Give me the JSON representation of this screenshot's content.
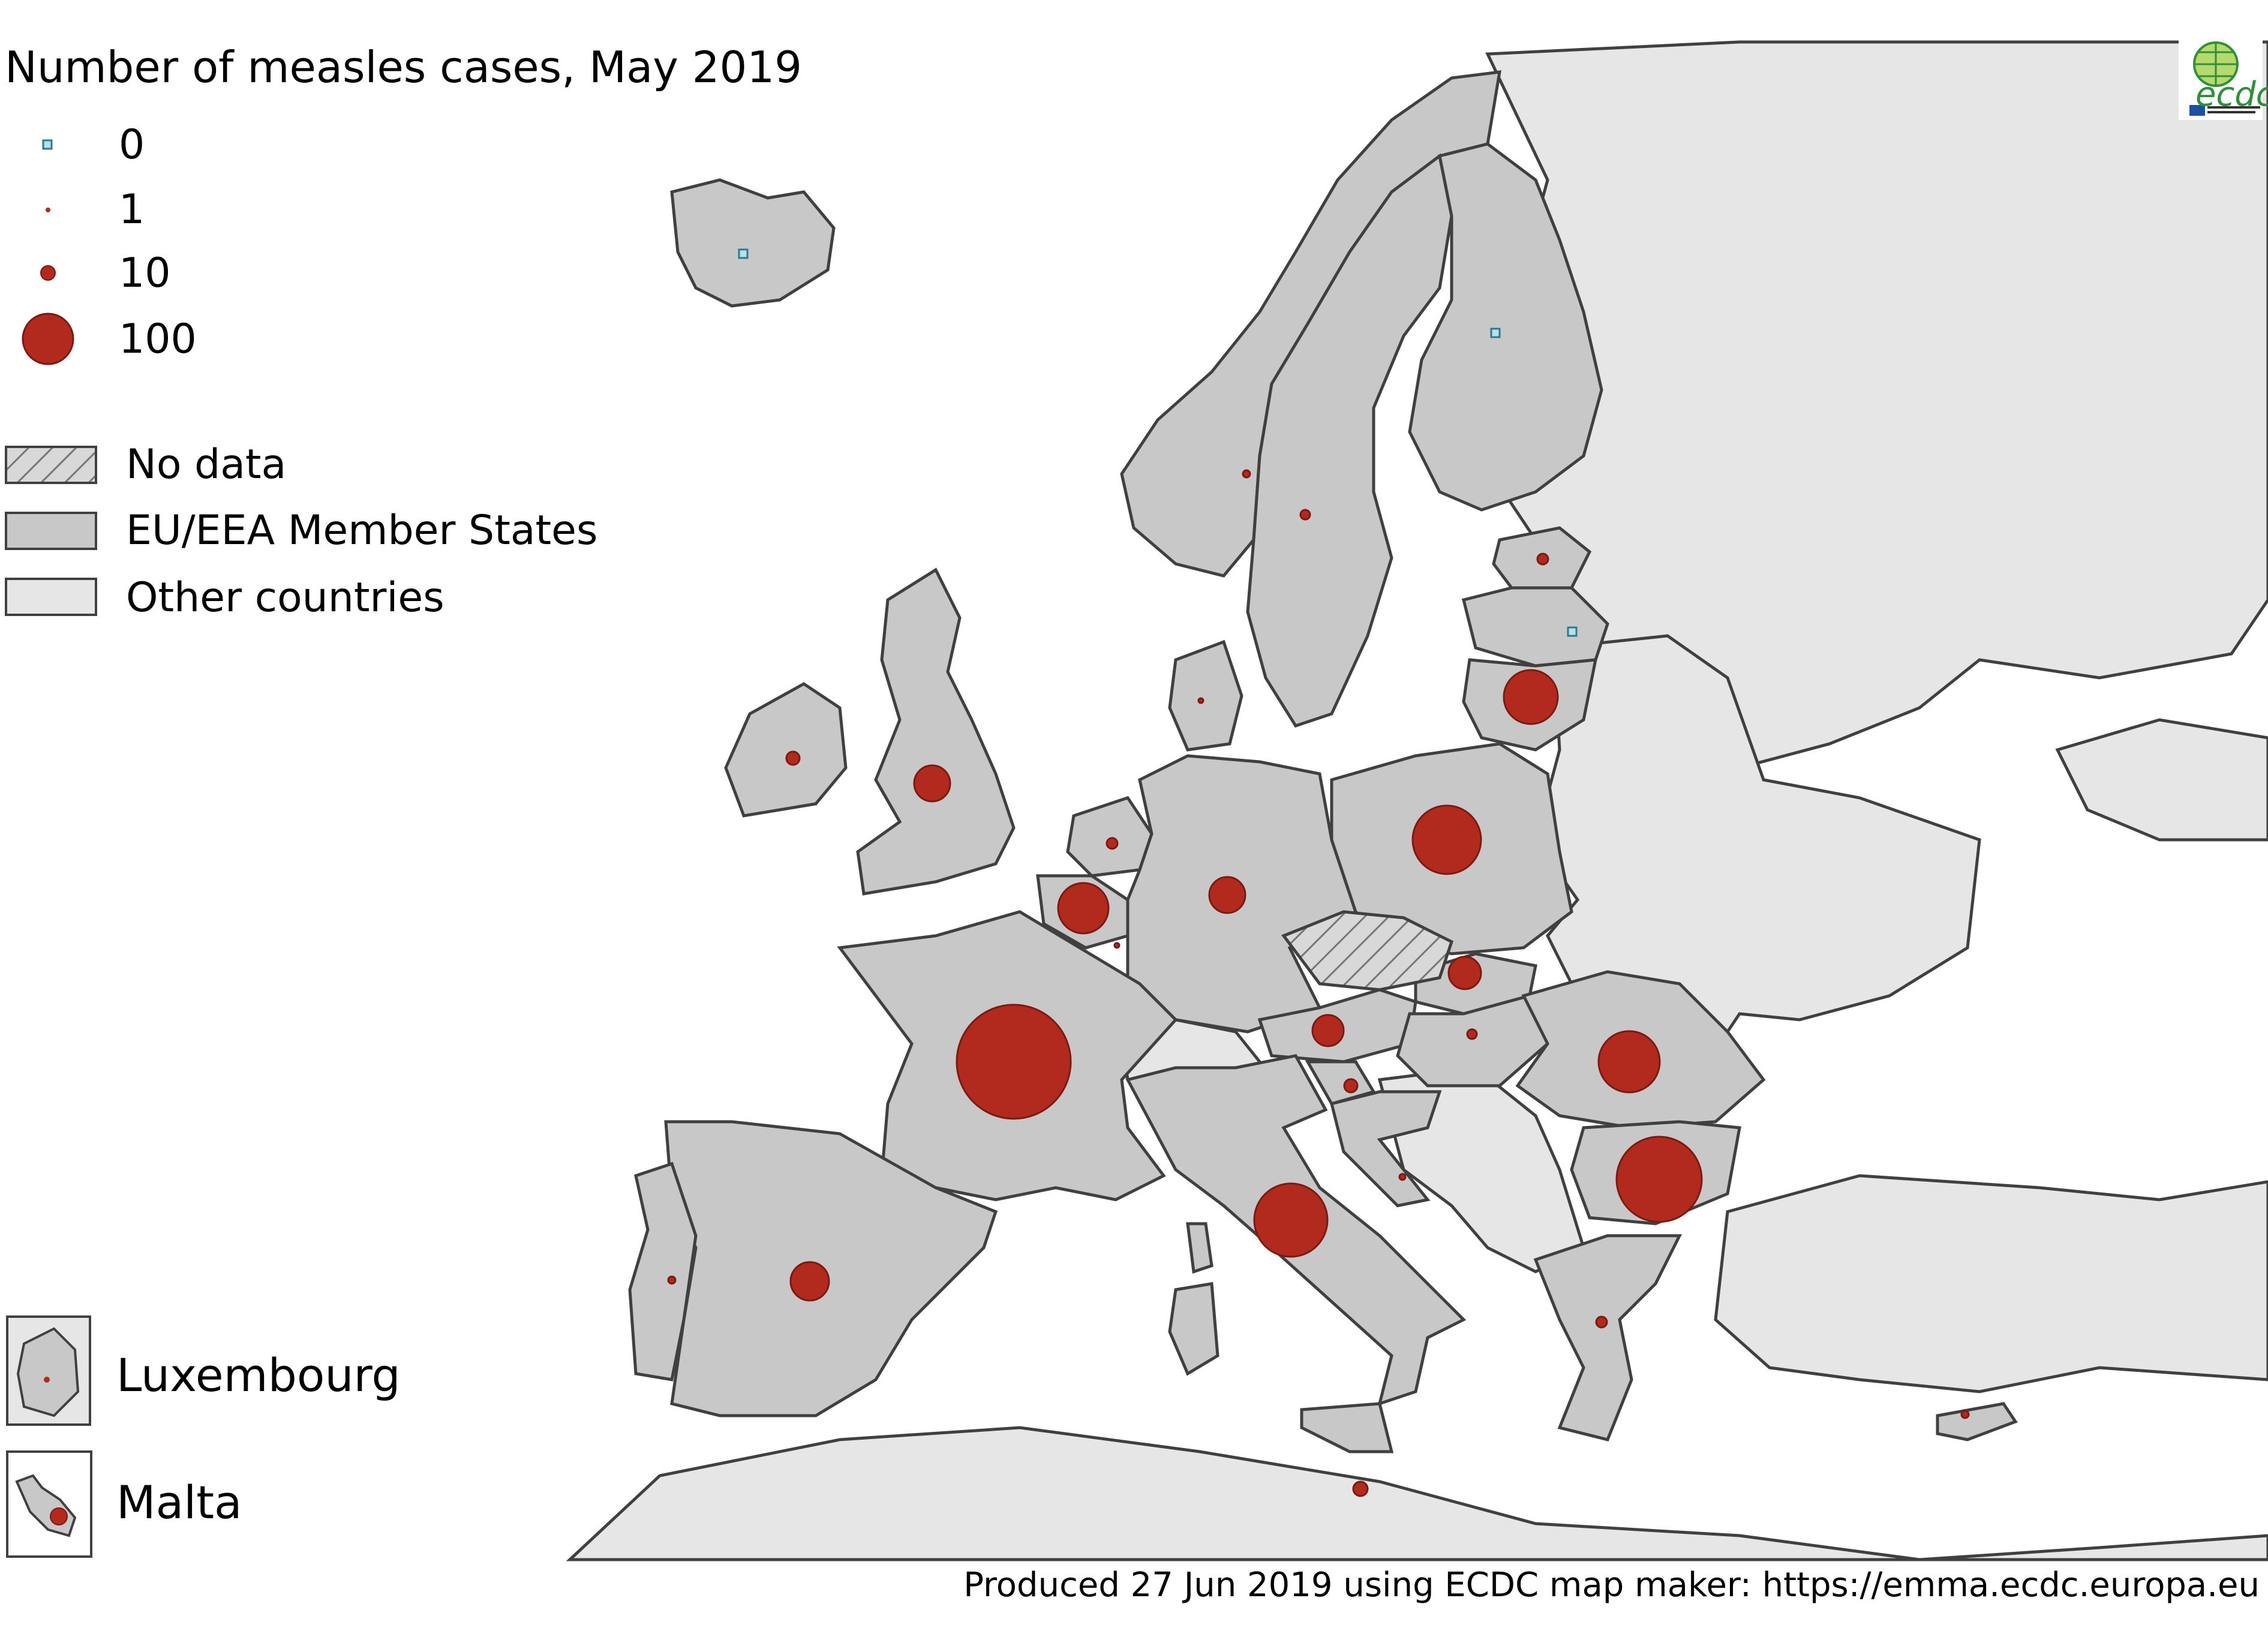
{
  "title": "Number of measles cases, May 2019",
  "legend": {
    "size_entries": [
      {
        "label": "0",
        "value": 0,
        "marker": "square-outline",
        "color": "#4aa3c0"
      },
      {
        "label": "1",
        "value": 1,
        "marker": "circle",
        "color": "#b22a1e"
      },
      {
        "label": "10",
        "value": 10,
        "marker": "circle",
        "color": "#b22a1e"
      },
      {
        "label": "100",
        "value": 100,
        "marker": "circle",
        "color": "#b22a1e"
      }
    ],
    "fill_entries": [
      {
        "label": "No data",
        "fill": "hatched"
      },
      {
        "label": "EU/EEA Member States",
        "fill": "#c8c8c8"
      },
      {
        "label": "Other countries",
        "fill": "#e6e6e6"
      }
    ]
  },
  "insets": [
    {
      "label": "Luxembourg"
    },
    {
      "label": "Malta"
    }
  ],
  "credit": "Produced 27 Jun 2019 using ECDC map maker: https://emma.ecdc.europa.eu",
  "logo": {
    "text": "ecdc",
    "icon": "ecdc-globe-logo"
  },
  "colors": {
    "case_marker": "#b22a1e",
    "zero_marker": "#4aa3c0",
    "eu_fill": "#c8c8c8",
    "other_fill": "#e6e6e6",
    "border": "#404040"
  }
}
